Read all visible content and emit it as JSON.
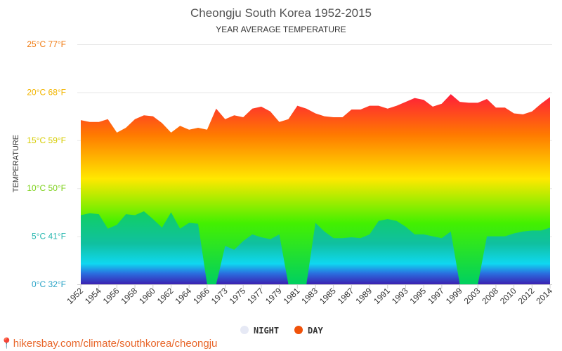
{
  "chart_data": {
    "type": "area",
    "title": "Cheongju South Korea 1952-2015",
    "subtitle": "YEAR AVERAGE TEMPERATURE",
    "ylabel": "TEMPERATURE",
    "ylim": [
      0,
      25
    ],
    "yticks": [
      {
        "value": 0,
        "label": "0°C 32°F",
        "color": "#2aa3c6"
      },
      {
        "value": 5,
        "label": "5°C 41°F",
        "color": "#2ab8b0"
      },
      {
        "value": 10,
        "label": "10°C 50°F",
        "color": "#7dd11a"
      },
      {
        "value": 15,
        "label": "15°C 59°F",
        "color": "#d6cc00"
      },
      {
        "value": 20,
        "label": "20°C 68°F",
        "color": "#f2b500"
      },
      {
        "value": 25,
        "label": "25°C 77°F",
        "color": "#f07a10"
      }
    ],
    "xlabels": [
      "1952",
      "1954",
      "1956",
      "1958",
      "1960",
      "1962",
      "1964",
      "1966",
      "1973",
      "1975",
      "1977",
      "1979",
      "1981",
      "1983",
      "1985",
      "1987",
      "1989",
      "1991",
      "1993",
      "1995",
      "1997",
      "1999",
      "2003",
      "2008",
      "2010",
      "2012",
      "2014"
    ],
    "grid": true,
    "legend_position": "bottom",
    "series": [
      {
        "name": "NIGHT",
        "color": "#e6e9f5",
        "values": [
          7.2,
          7.4,
          7.3,
          5.8,
          6.2,
          7.3,
          7.2,
          7.6,
          6.8,
          5.9,
          7.5,
          5.8,
          6.4,
          6.3,
          0,
          0,
          4.0,
          3.6,
          4.5,
          5.2,
          4.9,
          4.7,
          5.2,
          0,
          0,
          0,
          6.4,
          5.5,
          4.8,
          4.8,
          4.9,
          4.8,
          5.2,
          6.6,
          6.8,
          6.6,
          6.0,
          5.2,
          5.2,
          5.0,
          4.8,
          5.5,
          0,
          0,
          0,
          5.0,
          5.0,
          5.0,
          5.3,
          5.5,
          5.6,
          5.6,
          5.9
        ]
      },
      {
        "name": "DAY",
        "color": "#f0520a",
        "values": [
          17.1,
          16.9,
          16.9,
          17.2,
          15.8,
          16.3,
          17.2,
          17.6,
          17.5,
          16.8,
          15.8,
          16.5,
          16.1,
          16.3,
          16.1,
          18.3,
          17.2,
          17.6,
          17.4,
          18.3,
          18.5,
          18.0,
          16.9,
          17.2,
          18.6,
          18.3,
          17.8,
          17.5,
          17.4,
          17.4,
          18.2,
          18.2,
          18.6,
          18.6,
          18.3,
          18.6,
          19.0,
          19.4,
          19.2,
          18.5,
          18.8,
          19.8,
          19.0,
          18.9,
          18.9,
          19.3,
          18.4,
          18.4,
          17.8,
          17.7,
          18.0,
          18.8,
          19.5
        ]
      }
    ]
  },
  "legend": {
    "night_label": "NIGHT",
    "day_label": "DAY",
    "night_color": "#e6e9f5",
    "day_color": "#f0520a"
  },
  "source_text": "hikersbay.com/climate/southkorea/cheongju"
}
